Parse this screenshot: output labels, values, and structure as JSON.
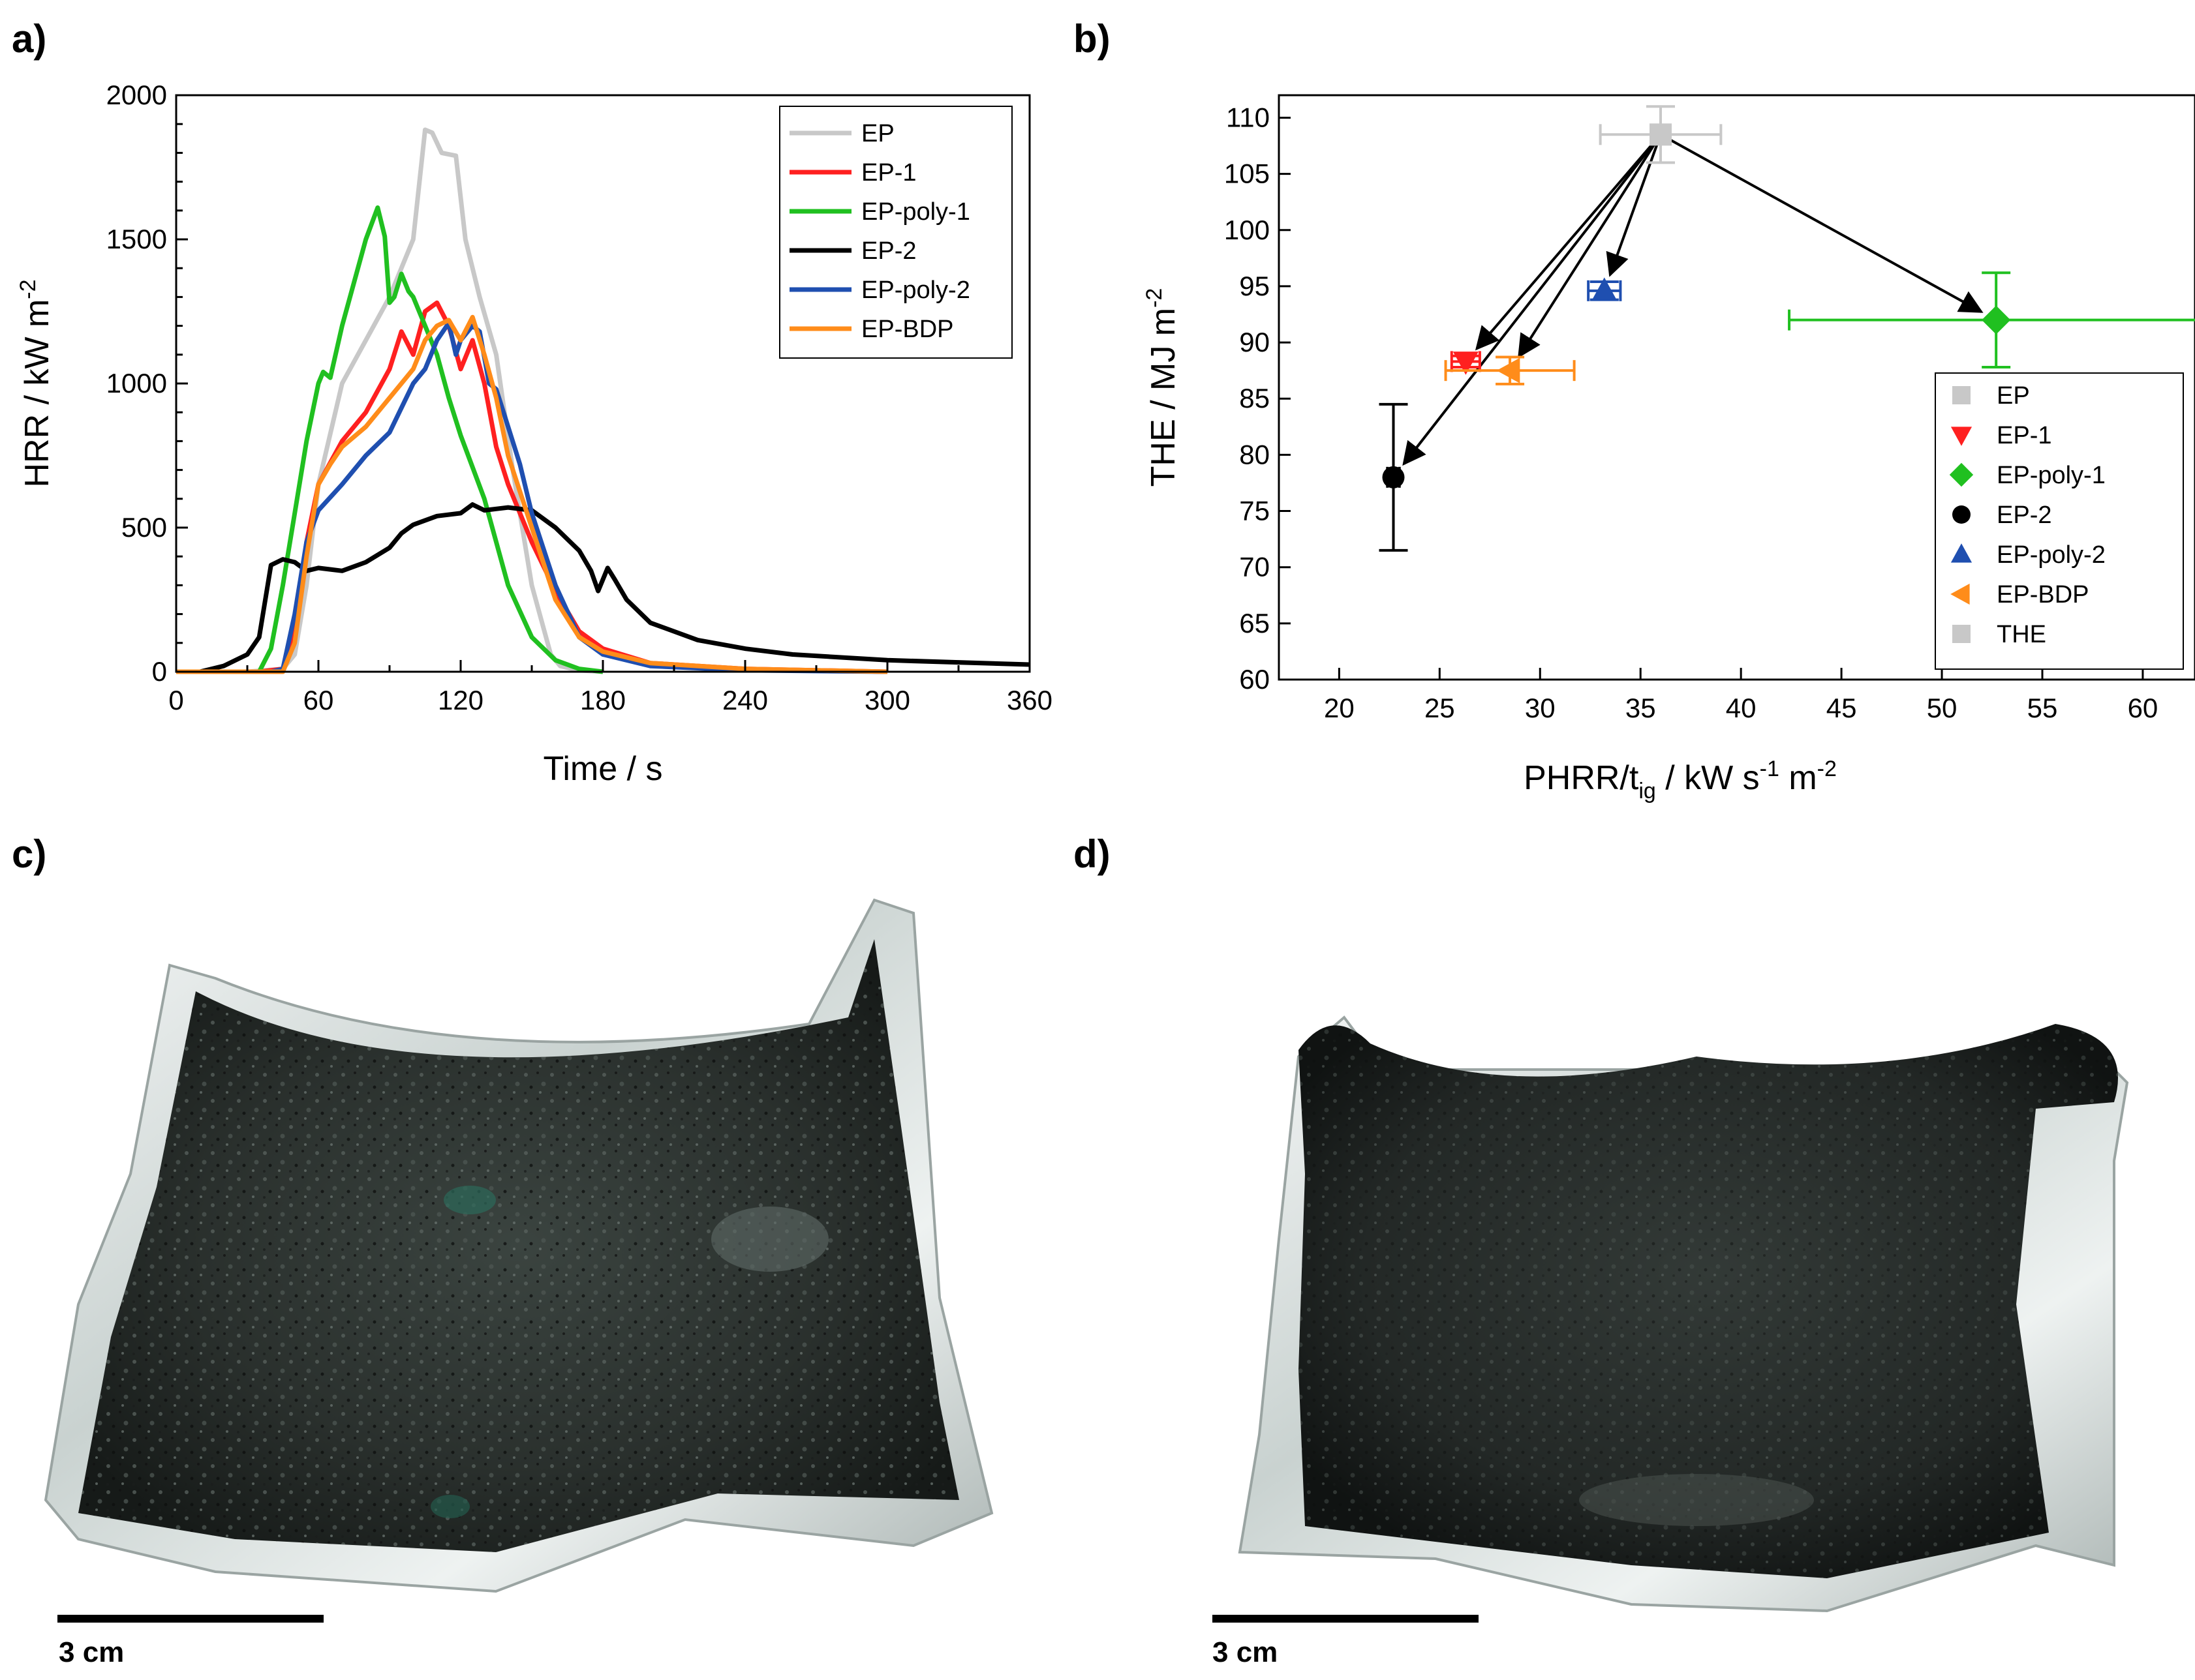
{
  "panel_labels": {
    "a": "a)",
    "b": "b)",
    "c": "c)",
    "d": "d)"
  },
  "chart_data": [
    {
      "type": "line",
      "id": "a",
      "title": "",
      "xlabel": "Time /  s",
      "ylabel_main": "HRR / kW m",
      "ylabel_sup": "-2",
      "xlim": [
        0,
        360
      ],
      "ylim": [
        0,
        2000
      ],
      "xticks": [
        0,
        60,
        120,
        180,
        240,
        300,
        360
      ],
      "yticks": [
        0,
        500,
        1000,
        1500,
        2000
      ],
      "grid": false,
      "legend_position": "top-right",
      "series": [
        {
          "name": "EP",
          "color": "#c8c8c8",
          "x": [
            0,
            30,
            45,
            50,
            55,
            60,
            70,
            80,
            90,
            100,
            105,
            108,
            112,
            118,
            122,
            128,
            135,
            142,
            150,
            158,
            162,
            170,
            180
          ],
          "y": [
            0,
            0,
            10,
            60,
            300,
            650,
            1000,
            1150,
            1300,
            1500,
            1880,
            1870,
            1800,
            1790,
            1500,
            1300,
            1100,
            700,
            300,
            60,
            20,
            5,
            0
          ]
        },
        {
          "name": "EP-1",
          "color": "#ff2020",
          "x": [
            0,
            35,
            45,
            50,
            55,
            60,
            70,
            80,
            90,
            95,
            100,
            105,
            110,
            115,
            120,
            125,
            130,
            135,
            140,
            150,
            160,
            170,
            180,
            200,
            240,
            300
          ],
          "y": [
            0,
            0,
            10,
            150,
            450,
            650,
            800,
            900,
            1050,
            1180,
            1100,
            1250,
            1280,
            1200,
            1050,
            1150,
            1000,
            780,
            650,
            450,
            280,
            140,
            80,
            30,
            10,
            0
          ]
        },
        {
          "name": "EP-poly-1",
          "color": "#20c020",
          "x": [
            0,
            35,
            40,
            45,
            50,
            55,
            60,
            62,
            65,
            70,
            75,
            80,
            85,
            88,
            90,
            92,
            95,
            98,
            100,
            105,
            110,
            115,
            120,
            130,
            140,
            150,
            160,
            170,
            180
          ],
          "y": [
            0,
            0,
            80,
            300,
            550,
            800,
            1000,
            1040,
            1020,
            1200,
            1350,
            1500,
            1610,
            1510,
            1280,
            1300,
            1380,
            1320,
            1300,
            1200,
            1100,
            950,
            820,
            600,
            300,
            120,
            40,
            10,
            0
          ]
        },
        {
          "name": "EP-2",
          "color": "#000000",
          "x": [
            0,
            10,
            20,
            30,
            35,
            40,
            45,
            50,
            55,
            60,
            70,
            80,
            90,
            95,
            100,
            110,
            120,
            125,
            130,
            140,
            150,
            160,
            170,
            175,
            178,
            182,
            185,
            190,
            200,
            220,
            240,
            260,
            300,
            360
          ],
          "y": [
            0,
            0,
            20,
            60,
            120,
            370,
            390,
            380,
            350,
            360,
            350,
            380,
            430,
            480,
            510,
            540,
            550,
            580,
            560,
            570,
            560,
            500,
            420,
            350,
            280,
            360,
            320,
            250,
            170,
            110,
            80,
            60,
            40,
            25
          ]
        },
        {
          "name": "EP-poly-2",
          "color": "#1f4fb0",
          "x": [
            0,
            40,
            45,
            50,
            55,
            60,
            70,
            80,
            90,
            100,
            105,
            110,
            115,
            118,
            120,
            125,
            128,
            132,
            135,
            140,
            145,
            150,
            160,
            170,
            180,
            200,
            240,
            300
          ],
          "y": [
            0,
            0,
            10,
            200,
            450,
            560,
            650,
            750,
            830,
            1000,
            1050,
            1150,
            1210,
            1100,
            1150,
            1200,
            1180,
            1000,
            980,
            850,
            720,
            550,
            300,
            120,
            60,
            20,
            5,
            0
          ]
        },
        {
          "name": "EP-BDP",
          "color": "#ff8c1a",
          "x": [
            0,
            45,
            50,
            55,
            60,
            65,
            70,
            80,
            90,
            95,
            100,
            105,
            110,
            115,
            120,
            125,
            130,
            135,
            140,
            150,
            160,
            170,
            180,
            200,
            240,
            300
          ],
          "y": [
            0,
            0,
            100,
            400,
            650,
            720,
            780,
            850,
            950,
            1000,
            1050,
            1150,
            1200,
            1220,
            1150,
            1230,
            1100,
            950,
            750,
            500,
            250,
            120,
            70,
            30,
            10,
            0
          ]
        }
      ]
    },
    {
      "type": "scatter",
      "id": "b",
      "title": "",
      "xlabel_parts": [
        "PHRR/t",
        "ig",
        " /  kW s",
        "-1",
        " m",
        "-2"
      ],
      "ylabel_main": "THE /  MJ m",
      "ylabel_sup": "-2",
      "xlim": [
        17,
        62.6
      ],
      "ylim": [
        60,
        112
      ],
      "xticks": [
        20,
        25,
        30,
        35,
        40,
        45,
        50,
        55,
        60
      ],
      "yticks": [
        60,
        65,
        70,
        75,
        80,
        85,
        90,
        95,
        100,
        105,
        110
      ],
      "grid": false,
      "legend_position": "bottom-right",
      "points": [
        {
          "name": "EP",
          "marker": "square",
          "color": "#c8c8c8",
          "x": 36.0,
          "y": 108.5,
          "xerr": 3.0,
          "yerr": 2.5
        },
        {
          "name": "EP-1",
          "marker": "triangle-down",
          "color": "#ff2020",
          "x": 26.3,
          "y": 88.3,
          "xerr": 0.7,
          "yerr": 0.5
        },
        {
          "name": "EP-poly-1",
          "marker": "diamond",
          "color": "#20c020",
          "x": 52.7,
          "y": 92.0,
          "xerr": 10.3,
          "yerr": 4.2
        },
        {
          "name": "EP-2",
          "marker": "circle",
          "color": "#000000",
          "x": 22.7,
          "y": 78.0,
          "xerr": 0.3,
          "yerr": 6.5
        },
        {
          "name": "EP-poly-2",
          "marker": "triangle-up",
          "color": "#1f4fb0",
          "x": 33.2,
          "y": 94.6,
          "xerr": 0.8,
          "yerr": 0.8
        },
        {
          "name": "EP-BDP",
          "marker": "triangle-left",
          "color": "#ff8c1a",
          "x": 28.5,
          "y": 87.5,
          "xerr": 3.2,
          "yerr": 1.2
        }
      ],
      "legend_items": [
        {
          "label": "EP",
          "marker": "square",
          "color": "#c8c8c8"
        },
        {
          "label": "EP-1",
          "marker": "triangle-down",
          "color": "#ff2020"
        },
        {
          "label": "EP-poly-1",
          "marker": "diamond",
          "color": "#20c020"
        },
        {
          "label": "EP-2",
          "marker": "circle",
          "color": "#000000"
        },
        {
          "label": "EP-poly-2",
          "marker": "triangle-up",
          "color": "#1f4fb0"
        },
        {
          "label": "EP-BDP",
          "marker": "triangle-left",
          "color": "#ff8c1a"
        },
        {
          "label": "THE",
          "marker": "square",
          "color": "#c8c8c8"
        }
      ],
      "arrows_from": "EP",
      "arrows_to": [
        "EP-1",
        "EP-poly-1",
        "EP-2",
        "EP-poly-2",
        "EP-BDP"
      ]
    }
  ],
  "photos": {
    "c": {
      "scale_label": "3 cm"
    },
    "d": {
      "scale_label": "3 cm"
    }
  }
}
